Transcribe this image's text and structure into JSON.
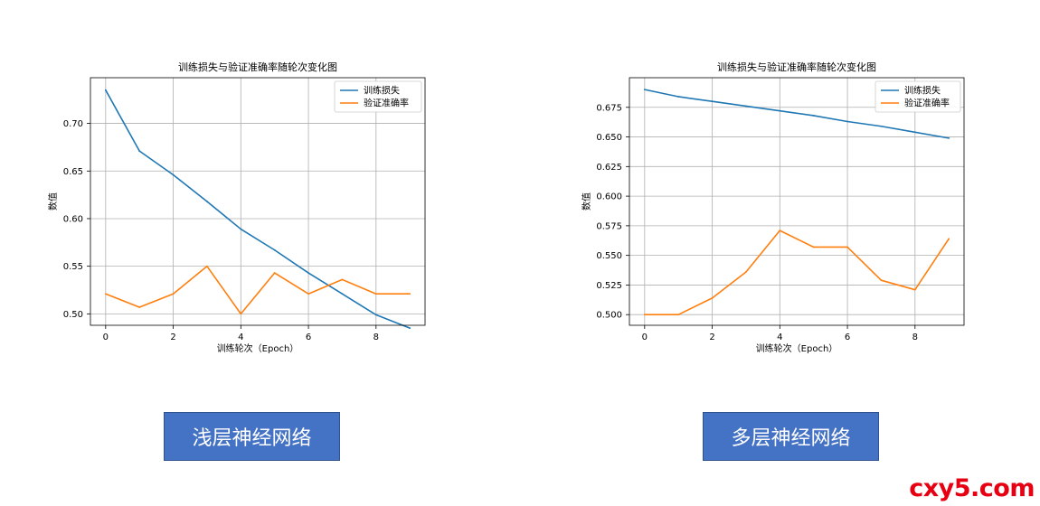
{
  "chart_data": [
    {
      "type": "line",
      "title": "训练损失与验证准确率随轮次变化图",
      "xlabel": "训练轮次（Epoch）",
      "ylabel": "数值",
      "x": [
        0,
        1,
        2,
        3,
        4,
        5,
        6,
        7,
        8,
        9
      ],
      "xlim": [
        -0.45,
        9.45
      ],
      "ylim": [
        0.488,
        0.748
      ],
      "xticks": [
        "0",
        "2",
        "4",
        "6",
        "8"
      ],
      "yticks": [
        "0.50",
        "0.55",
        "0.60",
        "0.65",
        "0.70"
      ],
      "grid": true,
      "legend_position": "top-right",
      "series": [
        {
          "name": "训练损失",
          "color": "#1f77b4",
          "values": [
            0.735,
            0.671,
            0.646,
            0.618,
            0.589,
            0.567,
            0.543,
            0.521,
            0.499,
            0.485
          ]
        },
        {
          "name": "验证准确率",
          "color": "#ff7f0e",
          "values": [
            0.521,
            0.507,
            0.521,
            0.55,
            0.5,
            0.543,
            0.521,
            0.536,
            0.521,
            0.521
          ]
        }
      ]
    },
    {
      "type": "line",
      "title": "训练损失与验证准确率随轮次变化图",
      "xlabel": "训练轮次（Epoch）",
      "ylabel": "数值",
      "x": [
        0,
        1,
        2,
        3,
        4,
        5,
        6,
        7,
        8,
        9
      ],
      "xlim": [
        -0.45,
        9.45
      ],
      "ylim": [
        0.491,
        0.7
      ],
      "xticks": [
        "0",
        "2",
        "4",
        "6",
        "8"
      ],
      "yticks": [
        "0.500",
        "0.525",
        "0.550",
        "0.575",
        "0.600",
        "0.625",
        "0.650",
        "0.675"
      ],
      "grid": true,
      "legend_position": "top-right",
      "series": [
        {
          "name": "训练损失",
          "color": "#1f77b4",
          "values": [
            0.69,
            0.684,
            0.68,
            0.676,
            0.672,
            0.668,
            0.663,
            0.659,
            0.654,
            0.649
          ]
        },
        {
          "name": "验证准确率",
          "color": "#ff7f0e",
          "values": [
            0.5,
            0.5,
            0.514,
            0.536,
            0.571,
            0.557,
            0.557,
            0.529,
            0.521,
            0.564
          ]
        }
      ]
    }
  ],
  "captions": {
    "left": "浅层神经网络",
    "right": "多层神经网络"
  },
  "watermark": "cxy5.com"
}
